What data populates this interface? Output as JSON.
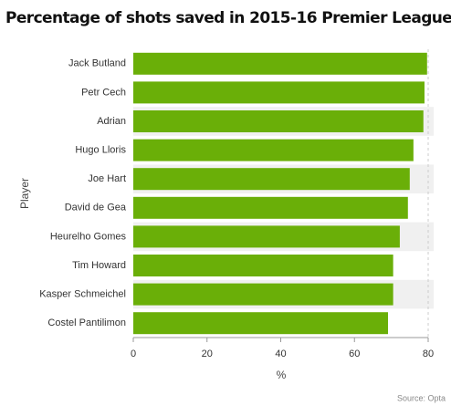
{
  "chart_data": {
    "type": "bar",
    "orientation": "horizontal",
    "title": "Percentage of shots saved in 2015-16 Premier League games",
    "x_label": "%",
    "y_label": "Player",
    "source": "Source: Opta",
    "categories": [
      "Jack Butland",
      "Petr Cech",
      "Adrian",
      "Hugo Lloris",
      "Joe Hart",
      "David de Gea",
      "Heurelho Gomes",
      "Tim Howard",
      "Kasper Schmeichel",
      "Costel Pantilimon"
    ],
    "values": [
      79.7,
      79,
      78.7,
      76,
      75,
      74.5,
      72.3,
      70.5,
      70.5,
      69.1
    ],
    "color": "#6aaf08",
    "xlim": [
      0,
      80
    ],
    "xticks": [
      0,
      20,
      40,
      60,
      80
    ]
  }
}
